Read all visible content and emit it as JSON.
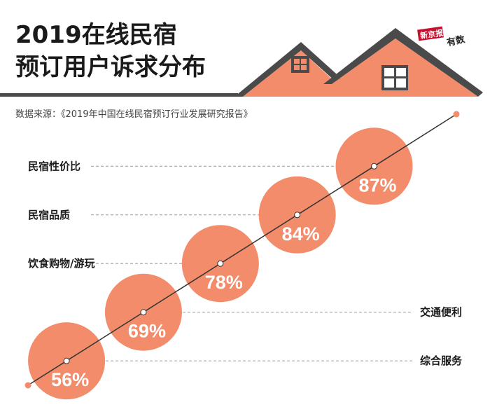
{
  "header": {
    "title_line1": "2019在线民宿",
    "title_line2": "预订用户诉求分布",
    "source": "数据来源：《2019年中国在线民宿预订行业发展研究报告》"
  },
  "logo": {
    "badge_text": "新京报",
    "tag_text": "有数"
  },
  "colors": {
    "accent": "#F28C6B",
    "roof": "#4A4A4A",
    "line": "#333333",
    "dash": "#999999"
  },
  "chart_data": {
    "type": "bubble",
    "title": "2019在线民宿预订用户诉求分布",
    "categories": [
      "综合服务",
      "交通便利",
      "饮食购物/游玩",
      "民宿品质",
      "民宿性价比"
    ],
    "values": [
      56,
      69,
      78,
      84,
      87
    ],
    "value_labels": [
      "56%",
      "69%",
      "78%",
      "84%",
      "87%"
    ],
    "label_side": [
      "right",
      "right",
      "left",
      "left",
      "left"
    ],
    "unit": "%"
  }
}
